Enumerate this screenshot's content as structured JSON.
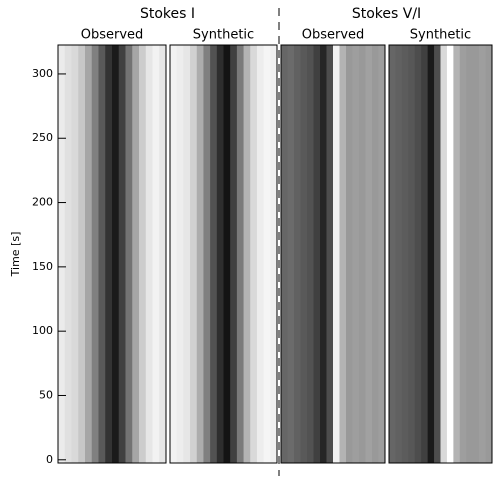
{
  "chart_data": {
    "type": "image",
    "ylabel": "Time [s]",
    "ylim": [
      -2.5,
      322.5
    ],
    "yticks": [
      0,
      50,
      100,
      150,
      200,
      250,
      300
    ],
    "groups": [
      {
        "title": "Stokes I",
        "panels": [
          {
            "title": "Observed",
            "values": [
              0.92,
              0.88,
              0.85,
              0.78,
              0.65,
              0.5,
              0.35,
              0.2,
              0.1,
              0.25,
              0.45,
              0.65,
              0.8,
              0.9,
              0.95,
              0.9
            ]
          },
          {
            "title": "Synthetic",
            "values": [
              0.95,
              0.93,
              0.9,
              0.82,
              0.68,
              0.5,
              0.32,
              0.18,
              0.08,
              0.25,
              0.48,
              0.7,
              0.85,
              0.93,
              0.96,
              0.94
            ]
          }
        ]
      },
      {
        "title": "Stokes V/I",
        "panels": [
          {
            "title": "Observed",
            "values": [
              0.4,
              0.42,
              0.38,
              0.35,
              0.32,
              0.25,
              0.15,
              0.3,
              0.95,
              0.7,
              0.6,
              0.62,
              0.6,
              0.63,
              0.6,
              0.62
            ]
          },
          {
            "title": "Synthetic",
            "values": [
              0.4,
              0.38,
              0.36,
              0.34,
              0.3,
              0.25,
              0.1,
              0.3,
              0.85,
              1.0,
              0.7,
              0.62,
              0.6,
              0.6,
              0.62,
              0.6
            ]
          }
        ]
      }
    ]
  }
}
